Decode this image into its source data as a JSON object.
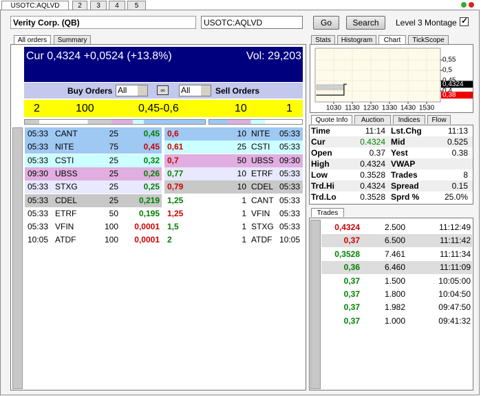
{
  "tabs": [
    "USOTC:AQLVD",
    "2",
    "3",
    "4",
    "5"
  ],
  "header": {
    "title": "Verity Corp. (QB)",
    "symbol": "USOTC:AQLVD",
    "go": "Go",
    "search": "Search",
    "montage": "Level 3 Montage",
    "montage_checked": true
  },
  "left_tabs": [
    "All orders",
    "Summary"
  ],
  "banner": {
    "cur": "Cur 0,4324 +0,0524 (+13.8%)",
    "vol": "Vol: 29,203"
  },
  "filters": {
    "buy_label": "Buy Orders",
    "buy_filter": "All",
    "sell_filter": "All",
    "sell_label": "Sell Orders"
  },
  "summary": {
    "buy_count": "2",
    "buy_size": "100",
    "spread": "0,45-0,6",
    "sell_size": "10",
    "sell_count": "1"
  },
  "buy_orders": [
    {
      "time": "05:33",
      "mm": "CANT",
      "size": "25",
      "price": "0,45",
      "price_color": "#008000",
      "bg": "#9fc8f2"
    },
    {
      "time": "05:33",
      "mm": "NITE",
      "size": "75",
      "price": "0,45",
      "price_color": "#cc0000",
      "bg": "#9fc8f2"
    },
    {
      "time": "05:33",
      "mm": "CSTI",
      "size": "25",
      "price": "0,32",
      "price_color": "#008000",
      "bg": "#ccffff"
    },
    {
      "time": "09:30",
      "mm": "UBSS",
      "size": "25",
      "price": "0,26",
      "price_color": "#008000",
      "bg": "#e0aee0"
    },
    {
      "time": "05:33",
      "mm": "STXG",
      "size": "25",
      "price": "0,25",
      "price_color": "#008000",
      "bg": "#e8e8ff"
    },
    {
      "time": "05:33",
      "mm": "CDEL",
      "size": "25",
      "price": "0,219",
      "price_color": "#008000",
      "bg": "#c8c8c8"
    },
    {
      "time": "05:33",
      "mm": "ETRF",
      "size": "50",
      "price": "0,195",
      "price_color": "#008000",
      "bg": "#ffffff"
    },
    {
      "time": "05:33",
      "mm": "VFIN",
      "size": "100",
      "price": "0,0001",
      "price_color": "#cc0000",
      "bg": "#ffffff"
    },
    {
      "time": "10:05",
      "mm": "ATDF",
      "size": "100",
      "price": "0,0001",
      "price_color": "#cc0000",
      "bg": "#ffffff"
    }
  ],
  "sell_orders": [
    {
      "price": "0,6",
      "size": "10",
      "mm": "NITE",
      "time": "05:33",
      "price_color": "#cc0000",
      "bg": "#9fc8f2"
    },
    {
      "price": "0,61",
      "size": "25",
      "mm": "CSTI",
      "time": "05:33",
      "price_color": "#cc0000",
      "bg": "#ccffff"
    },
    {
      "price": "0,7",
      "size": "50",
      "mm": "UBSS",
      "time": "09:30",
      "price_color": "#cc0000",
      "bg": "#e0aee0"
    },
    {
      "price": "0,77",
      "size": "10",
      "mm": "ETRF",
      "time": "05:33",
      "price_color": "#008000",
      "bg": "#e8e8ff"
    },
    {
      "price": "0,79",
      "size": "10",
      "mm": "CDEL",
      "time": "05:33",
      "price_color": "#cc0000",
      "bg": "#c8c8c8"
    },
    {
      "price": "1,25",
      "size": "1",
      "mm": "CANT",
      "time": "05:33",
      "price_color": "#008000",
      "bg": "#ffffff"
    },
    {
      "price": "1,25",
      "size": "1",
      "mm": "VFIN",
      "time": "05:33",
      "price_color": "#cc0000",
      "bg": "#ffffff"
    },
    {
      "price": "1,5",
      "size": "1",
      "mm": "STXG",
      "time": "05:33",
      "price_color": "#008000",
      "bg": "#ffffff"
    },
    {
      "price": "2",
      "size": "1",
      "mm": "ATDF",
      "time": "10:05",
      "price_color": "#008000",
      "bg": "#ffffff"
    }
  ],
  "right_tabs": [
    "Stats",
    "Histogram",
    "Chart",
    "TickScope"
  ],
  "price_chart": {
    "type": "line",
    "x": [
      935,
      1085,
      1085,
      1100
    ],
    "values": [
      0.38,
      0.38,
      0.4324,
      0.4324
    ],
    "color": "#333333",
    "xlim": [
      930,
      1604
    ],
    "ylim": [
      0.347,
      0.607
    ],
    "xticks": [
      1030,
      1130,
      1230,
      1330,
      1430,
      1530
    ],
    "yticks": [
      {
        "value": 0.55,
        "label": "0,55"
      },
      {
        "value": 0.5,
        "label": "0,5"
      },
      {
        "value": 0.45,
        "label": "0,45"
      },
      {
        "value": 0.4,
        "label": "0,4"
      }
    ],
    "markers": [
      {
        "value": 0.4324,
        "label": "0,4324",
        "color": "#000000"
      },
      {
        "value": 0.38,
        "label": "0,38",
        "color": "#ee0000"
      }
    ],
    "grid": true
  },
  "quote_tabs": [
    "Quote Info",
    "Auction",
    "Indices",
    "Flow"
  ],
  "quote": [
    {
      "label": "Time",
      "value": "11:14",
      "label2": "Lst.Chg",
      "value2": "11:13"
    },
    {
      "label": "Cur",
      "value": "0.4324",
      "value_color": "#008000",
      "label2": "Mid",
      "value2": "0.525"
    },
    {
      "label": "Open",
      "value": "0.37",
      "label2": "Yest",
      "value2": "0.38"
    },
    {
      "label": "High",
      "value": "0.4324",
      "label2": "VWAP"
    },
    {
      "label": "Low",
      "value": "0.3528",
      "label2": "Trades",
      "value2": "8"
    },
    {
      "label": "Trd.Hi",
      "value": "0.4324",
      "label2": "Spread",
      "value2": "0.15"
    },
    {
      "label": "Trd.Lo",
      "value": "0.3528",
      "label2": "Sprd %",
      "value2": "25.0%"
    }
  ],
  "trades_tab": "Trades",
  "trades": [
    {
      "price": "0,4324",
      "size": "2.500",
      "time": "11:12:49",
      "color": "#cc0000",
      "highlight": false
    },
    {
      "price": "0,37",
      "size": "6.500",
      "time": "11:11:42",
      "color": "#cc0000",
      "highlight": true
    },
    {
      "price": "0,3528",
      "size": "7.461",
      "time": "11:11:34",
      "color": "#008000",
      "highlight": false
    },
    {
      "price": "0,36",
      "size": "6.460",
      "time": "11:11:09",
      "color": "#008000",
      "highlight": true
    },
    {
      "price": "0,37",
      "size": "1.500",
      "time": "10:05:00",
      "color": "#008000",
      "highlight": false
    },
    {
      "price": "0,37",
      "size": "1.800",
      "time": "10:04:50",
      "color": "#008000",
      "highlight": false
    },
    {
      "price": "0,37",
      "size": "1.982",
      "time": "09:47:50",
      "color": "#008000",
      "highlight": false
    },
    {
      "price": "0,37",
      "size": "1.000",
      "time": "09:41:32",
      "color": "#008000",
      "highlight": false
    }
  ]
}
